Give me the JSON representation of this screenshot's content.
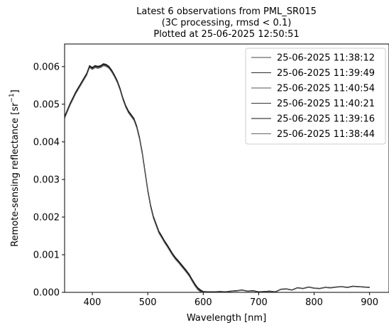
{
  "chart_data": {
    "type": "line",
    "title_lines": [
      "Latest 6 observations from PML_SR015",
      "(3C processing, rmsd < 0.1)",
      "Plotted at 25-06-2025 12:50:51"
    ],
    "xlabel": "Wavelength [nm]",
    "ylabel_main": "Remote-sensing reflectance [sr",
    "ylabel_sup": "−1",
    "ylabel_close": "]",
    "xlim": [
      350,
      935
    ],
    "ylim": [
      0,
      0.0066
    ],
    "x_ticks": [
      400,
      500,
      600,
      700,
      800,
      900
    ],
    "y_ticks": [
      0.0,
      0.001,
      0.002,
      0.003,
      0.004,
      0.005,
      0.006
    ],
    "y_tick_labels": [
      "0.000",
      "0.001",
      "0.002",
      "0.003",
      "0.004",
      "0.005",
      "0.006"
    ],
    "grid": false,
    "legend_position": "top-right",
    "x": [
      350,
      360,
      370,
      380,
      390,
      395,
      400,
      405,
      410,
      415,
      420,
      425,
      430,
      435,
      440,
      445,
      450,
      455,
      460,
      465,
      470,
      475,
      480,
      485,
      490,
      495,
      500,
      505,
      510,
      515,
      520,
      525,
      530,
      535,
      540,
      545,
      550,
      555,
      560,
      565,
      570,
      575,
      580,
      585,
      590,
      595,
      600,
      610,
      620,
      630,
      640,
      650,
      660,
      670,
      680,
      690,
      700,
      710,
      720,
      730,
      740,
      750,
      760,
      770,
      780,
      790,
      800,
      810,
      820,
      830,
      840,
      850,
      860,
      870,
      880,
      890,
      900
    ],
    "series": [
      {
        "name": "25-06-2025 11:38:12",
        "color": "#444444",
        "y_offset": 3e-05
      },
      {
        "name": "25-06-2025 11:39:49",
        "color": "#2a2a2a",
        "y_offset": 1e-05
      },
      {
        "name": "25-06-2025 11:40:54",
        "color": "#555555",
        "y_offset": -2e-05
      },
      {
        "name": "25-06-2025 11:40:21",
        "color": "#333333",
        "y_offset": 0.0
      },
      {
        "name": "25-06-2025 11:39:16",
        "color": "#111111",
        "y_offset": 2e-05
      },
      {
        "name": "25-06-2025 11:38:44",
        "color": "#666666",
        "y_offset": -3e-05
      }
    ],
    "base_values": [
      0.00465,
      0.005,
      0.0053,
      0.00555,
      0.0058,
      0.006,
      0.00595,
      0.006,
      0.00598,
      0.006,
      0.00605,
      0.00603,
      0.00598,
      0.00588,
      0.00575,
      0.0056,
      0.0054,
      0.00515,
      0.00495,
      0.0048,
      0.0047,
      0.0046,
      0.0044,
      0.0041,
      0.0037,
      0.0032,
      0.0027,
      0.0023,
      0.002,
      0.0018,
      0.0016,
      0.00148,
      0.00135,
      0.00124,
      0.00112,
      0.001,
      0.0009,
      0.00082,
      0.00073,
      0.00064,
      0.00055,
      0.00045,
      0.00032,
      0.0002,
      0.0001,
      4e-05,
      2e-05,
      1e-05,
      1e-05,
      2e-05,
      1e-05,
      3e-05,
      4e-05,
      6e-05,
      3e-05,
      4e-05,
      1e-05,
      2e-05,
      3e-05,
      1e-05,
      8e-05,
      9e-05,
      6e-05,
      0.00012,
      0.0001,
      0.00014,
      0.00011,
      0.0001,
      0.00013,
      0.00012,
      0.00014,
      0.00015,
      0.00013,
      0.00016,
      0.00015,
      0.00014,
      0.00013
    ]
  }
}
